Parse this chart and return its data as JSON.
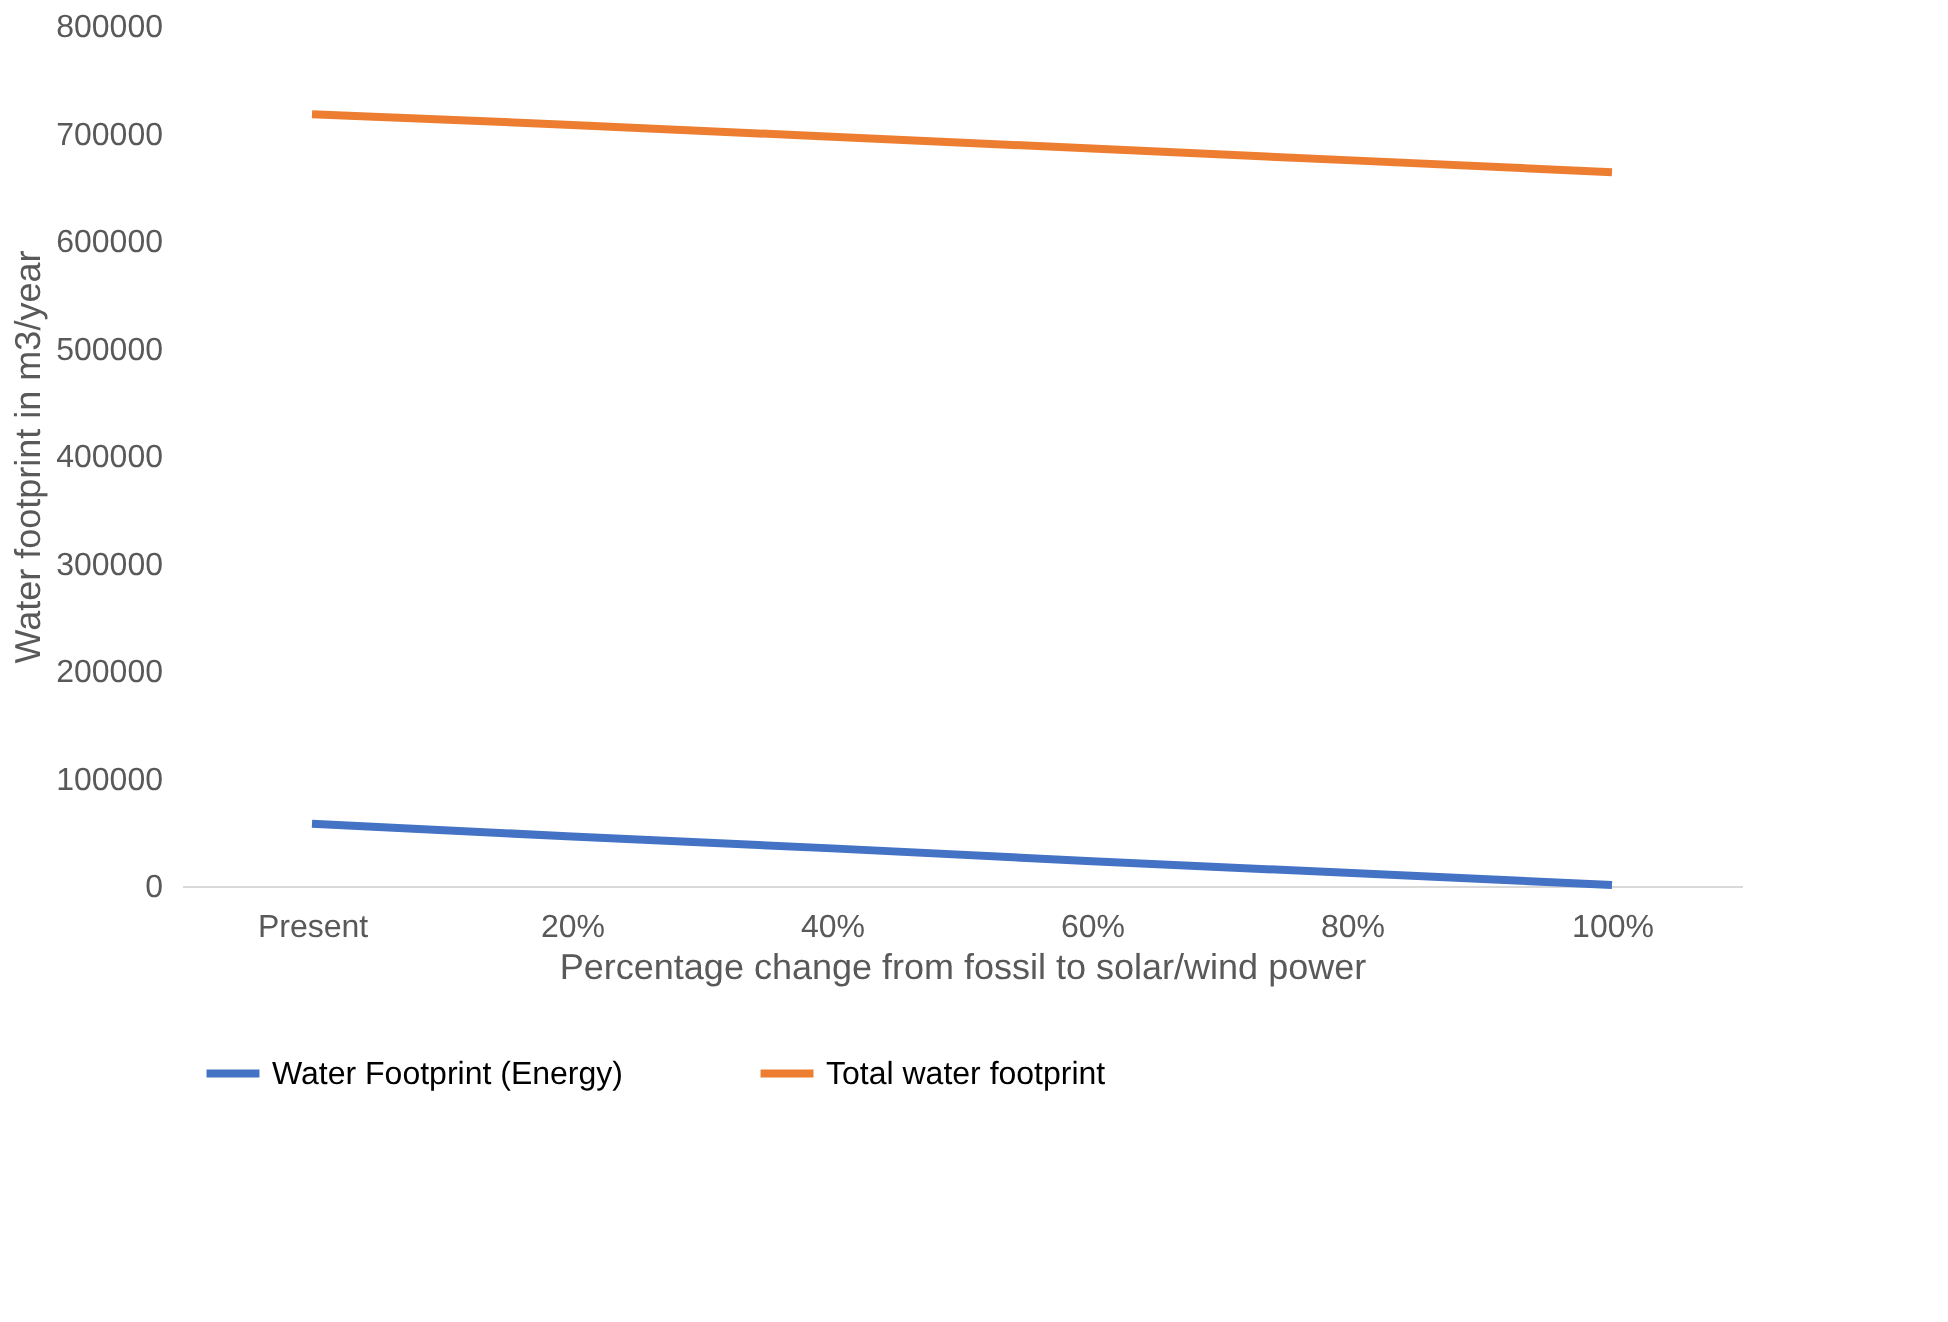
{
  "chart_data": {
    "type": "line",
    "xlabel": "Percentage change from fossil to solar/wind power",
    "ylabel": "Water footprint in m3/year",
    "categories": [
      "Present",
      "20%",
      "40%",
      "60%",
      "80%",
      "100%"
    ],
    "series": [
      {
        "name": "Water Footprint (Energy)",
        "color": "#4472c4",
        "values": [
          58000,
          46000,
          35000,
          23000,
          12000,
          1000
        ]
      },
      {
        "name": "Total water footprint",
        "color": "#ed7d31",
        "values": [
          718000,
          708000,
          697000,
          686000,
          675000,
          664000
        ]
      }
    ],
    "ylim": [
      0,
      800000
    ],
    "yticks": [
      0,
      100000,
      200000,
      300000,
      400000,
      500000,
      600000,
      700000,
      800000
    ],
    "grid": false,
    "legend": "bottom",
    "marker": "none",
    "line_style": "solid"
  }
}
